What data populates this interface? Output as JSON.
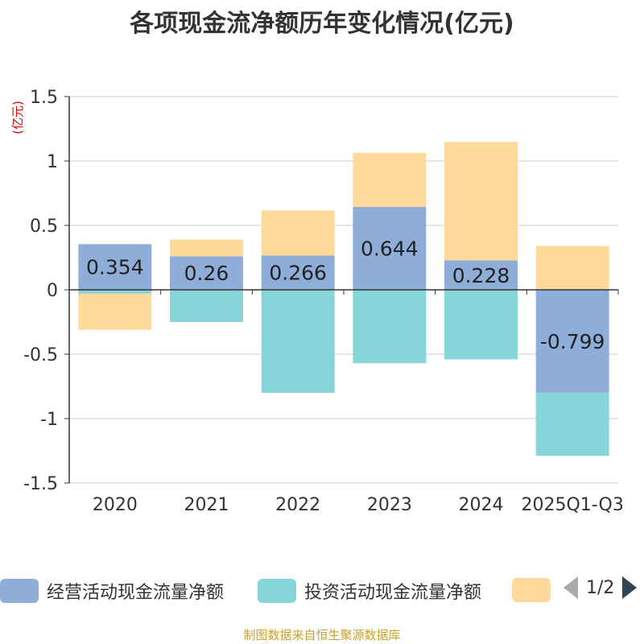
{
  "chart_data": {
    "type": "bar",
    "stacked": true,
    "title": "各项现金流净额历年变化情况(亿元)",
    "ylabel": "(亿元)",
    "xlabel": "",
    "ylim": [
      -1.5,
      1.5
    ],
    "yticks": [
      -1.5,
      -1,
      -0.5,
      0,
      0.5,
      1,
      1.5
    ],
    "ytick_labels": [
      "-1.5",
      "-1",
      "-0.5",
      "0",
      "0.5",
      "1",
      "1.5"
    ],
    "grid": true,
    "categories": [
      "2020",
      "2021",
      "2022",
      "2023",
      "2024",
      "2025Q1-Q3"
    ],
    "series": [
      {
        "name": "经营活动现金流量净额",
        "color": "#8eadd9",
        "values": [
          0.354,
          0.26,
          0.266,
          0.644,
          0.228,
          -0.799
        ],
        "labels": [
          "0.354",
          "0.26",
          "0.266",
          "0.644",
          "0.228",
          "-0.799"
        ]
      },
      {
        "name": "投资活动现金流量净额",
        "color": "#86d5d8",
        "values": [
          -0.03,
          -0.25,
          -0.8,
          -0.57,
          -0.54,
          -0.49
        ]
      },
      {
        "name": "",
        "color": "#fdd99a",
        "values": [
          -0.28,
          0.13,
          0.35,
          0.42,
          0.92,
          0.34
        ]
      }
    ],
    "legend_position": "bottom"
  },
  "legend": {
    "items": [
      {
        "label": "经营活动现金流量净额",
        "color": "#8eadd9"
      },
      {
        "label": "投资活动现金流量净额",
        "color": "#86d5d8"
      },
      {
        "label": "",
        "color": "#fdd99a"
      }
    ],
    "page": "1/2"
  },
  "footer": {
    "source": "制图数据来自恒生聚源数据库"
  }
}
